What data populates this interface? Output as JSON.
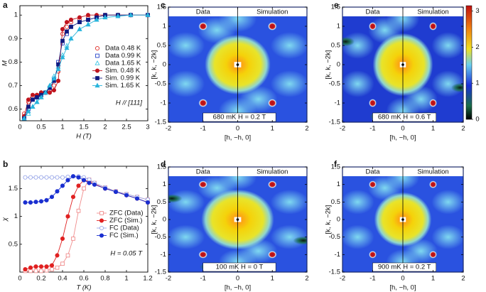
{
  "chart_data": [
    {
      "panel_label": "a",
      "type": "line",
      "x_label": "H (T)",
      "y_label": "M",
      "annotation": "H // [111]",
      "xlim": [
        0,
        3
      ],
      "xticks": [
        0,
        0.5,
        1,
        1.5,
        2,
        2.5,
        3
      ],
      "ylim": [
        0.55,
        1.04
      ],
      "yticks": [
        0.6,
        0.7,
        0.8,
        0.9,
        1
      ],
      "x": [
        0.1,
        0.2,
        0.3,
        0.4,
        0.5,
        0.6,
        0.7,
        0.8,
        0.9,
        1.0,
        1.1,
        1.2,
        1.4,
        1.6,
        1.8,
        2.0,
        2.3,
        2.6,
        3.0
      ],
      "series": [
        {
          "name": "Data 0.48 K",
          "color": "#e0302a",
          "marker": "circle-open",
          "line": false,
          "values": [
            0.58,
            0.63,
            0.65,
            0.66,
            0.67,
            0.67,
            0.68,
            0.7,
            0.76,
            0.92,
            0.95,
            0.97,
            0.98,
            0.99,
            0.995,
            1.0,
            1.0,
            1.0,
            1.0
          ]
        },
        {
          "name": "Data 0.99 K",
          "color": "#2340c8",
          "marker": "square-open",
          "line": false,
          "values": [
            0.56,
            0.6,
            0.64,
            0.65,
            0.66,
            0.67,
            0.69,
            0.73,
            0.8,
            0.88,
            0.92,
            0.95,
            0.97,
            0.98,
            0.99,
            1.0,
            1.0,
            1.0,
            1.0
          ]
        },
        {
          "name": "Data 1.65 K",
          "color": "#3cc6e6",
          "marker": "triangle-open",
          "line": false,
          "values": [
            0.56,
            0.58,
            0.61,
            0.63,
            0.65,
            0.67,
            0.7,
            0.74,
            0.78,
            0.83,
            0.87,
            0.9,
            0.94,
            0.96,
            0.98,
            0.99,
            1.0,
            1.0,
            1.0
          ]
        },
        {
          "name": "Sim. 0.48 K",
          "color": "#c0141e",
          "marker": "circle",
          "line": true,
          "values": [
            0.57,
            0.64,
            0.66,
            0.66,
            0.67,
            0.67,
            0.67,
            0.68,
            0.72,
            0.94,
            0.97,
            0.98,
            0.99,
            1.0,
            1.0,
            1.0,
            1.0,
            1.0,
            1.0
          ]
        },
        {
          "name": "Sim. 0.99 K",
          "color": "#101a80",
          "marker": "square",
          "line": true,
          "values": [
            0.56,
            0.61,
            0.64,
            0.65,
            0.66,
            0.67,
            0.69,
            0.72,
            0.79,
            0.89,
            0.93,
            0.95,
            0.97,
            0.98,
            0.99,
            1.0,
            1.0,
            1.0,
            1.0
          ]
        },
        {
          "name": "Sim. 1.65 K",
          "color": "#28b4dc",
          "marker": "triangle",
          "line": true,
          "values": [
            0.56,
            0.59,
            0.61,
            0.63,
            0.65,
            0.67,
            0.7,
            0.73,
            0.77,
            0.82,
            0.86,
            0.9,
            0.94,
            0.96,
            0.98,
            0.99,
            0.995,
            1.0,
            1.0
          ]
        }
      ]
    },
    {
      "panel_label": "b",
      "type": "line",
      "x_label": "T (K)",
      "y_label": "χ",
      "annotation": "H = 0.05 T",
      "xlim": [
        0,
        1.2
      ],
      "xticks": [
        0,
        0.2,
        0.4,
        0.6,
        0.8,
        1,
        1.2
      ],
      "ylim": [
        0,
        1.9
      ],
      "yticks": [
        0.5,
        1,
        1.5
      ],
      "x": [
        0.05,
        0.1,
        0.15,
        0.2,
        0.25,
        0.3,
        0.35,
        0.4,
        0.45,
        0.5,
        0.55,
        0.6,
        0.65,
        0.7,
        0.8,
        0.9,
        1.0,
        1.1,
        1.2
      ],
      "series": [
        {
          "name": "ZFC (Data)",
          "color": "#f08c8c",
          "marker": "square-open",
          "line": true,
          "values": [
            0.02,
            0.02,
            0.02,
            0.02,
            0.03,
            0.05,
            0.08,
            0.15,
            0.3,
            0.6,
            1.1,
            1.5,
            1.66,
            1.6,
            1.52,
            1.45,
            1.4,
            1.35,
            1.3
          ]
        },
        {
          "name": "ZFC (Sim.)",
          "color": "#e02020",
          "marker": "circle",
          "line": true,
          "values": [
            0.05,
            0.08,
            0.1,
            0.1,
            0.1,
            0.12,
            0.3,
            0.6,
            1.0,
            1.35,
            1.55,
            1.65,
            1.63,
            1.58,
            1.5,
            1.45,
            1.38,
            1.32,
            1.25
          ]
        },
        {
          "name": "FC (Data)",
          "color": "#9aa8e8",
          "marker": "circle-open",
          "line": true,
          "values": [
            1.7,
            1.7,
            1.7,
            1.7,
            1.7,
            1.7,
            1.7,
            1.7,
            1.71,
            1.72,
            1.72,
            1.7,
            1.66,
            1.6,
            1.52,
            1.45,
            1.4,
            1.35,
            1.3
          ]
        },
        {
          "name": "FC (Sim.)",
          "color": "#1a2fd0",
          "marker": "circle",
          "line": true,
          "values": [
            1.25,
            1.25,
            1.26,
            1.27,
            1.29,
            1.35,
            1.45,
            1.55,
            1.65,
            1.72,
            1.7,
            1.65,
            1.6,
            1.57,
            1.5,
            1.44,
            1.38,
            1.32,
            1.25
          ]
        }
      ]
    },
    {
      "panel_label": "c",
      "type": "heatmap",
      "headers": [
        "Data",
        "Simulation"
      ],
      "annotation": "680 mK   H = 0.2 T",
      "x_label": "[h, −h, 0]",
      "y_label": "[k, k, −2k]",
      "xlim": [
        -2,
        2
      ],
      "xticks": [
        -2,
        -1,
        0,
        1,
        2
      ],
      "ylim": [
        -1.5,
        1.5
      ],
      "yticks": [
        -1.5,
        -1,
        -0.5,
        0,
        0.5,
        1,
        1.5
      ]
    },
    {
      "panel_label": "d",
      "type": "heatmap",
      "headers": [
        "Data",
        "Simulation"
      ],
      "annotation": "100 mK   H = 0 T",
      "x_label": "[h, −h, 0]",
      "y_label": "[k, k, −2k]",
      "xlim": [
        -2,
        2
      ],
      "xticks": [
        -2,
        -1,
        0,
        1,
        2
      ],
      "ylim": [
        -1.5,
        1.5
      ],
      "yticks": [
        -1.5,
        -1,
        -0.5,
        0,
        0.5,
        1,
        1.5
      ]
    },
    {
      "panel_label": "e",
      "type": "heatmap",
      "headers": [
        "Data",
        "Simulation"
      ],
      "annotation": "680 mK   H = 0.6 T",
      "x_label": "[h, −h, 0]",
      "y_label": "[k, k, −2k]",
      "xlim": [
        -2,
        2
      ],
      "xticks": [
        -2,
        -1,
        0,
        1,
        2
      ],
      "ylim": [
        -1.5,
        1.5
      ],
      "yticks": [
        -1.5,
        -1,
        -0.5,
        0,
        0.5,
        1,
        1.5
      ],
      "colorbar": {
        "zlim": [
          0,
          3.15
        ],
        "zticks": [
          0,
          1,
          2,
          3
        ]
      }
    },
    {
      "panel_label": "f",
      "type": "heatmap",
      "headers": [
        "Data",
        "Simulation"
      ],
      "annotation": "900 mK   H = 0.2 T",
      "x_label": "[h, −h, 0]",
      "y_label": "[k, k, −2k]",
      "xlim": [
        -2,
        2
      ],
      "xticks": [
        -2,
        -1,
        0,
        1,
        2
      ],
      "ylim": [
        -1.5,
        1.5
      ],
      "yticks": [
        -1.5,
        -1,
        -0.5,
        0,
        0.5,
        1,
        1.5
      ]
    }
  ]
}
